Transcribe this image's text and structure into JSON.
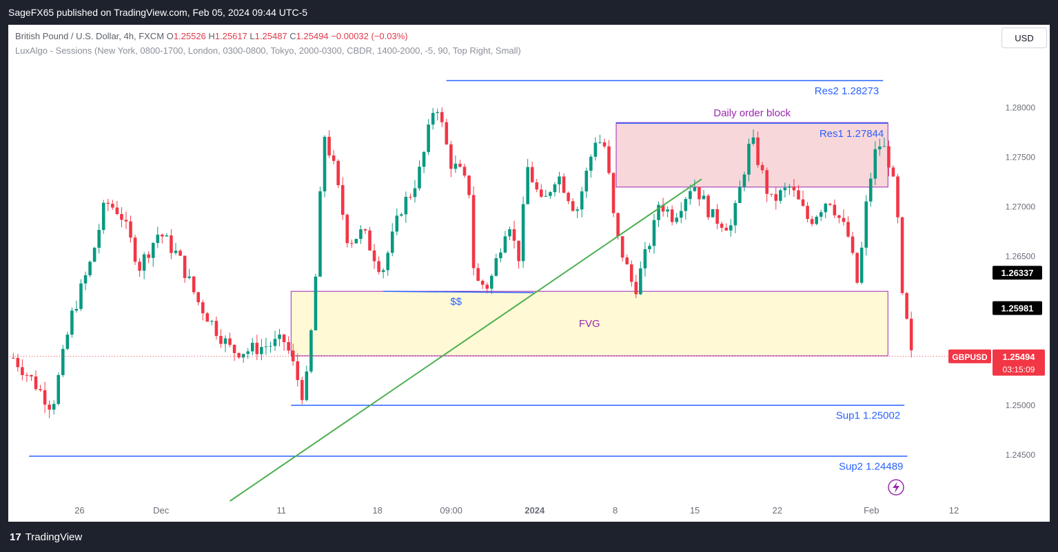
{
  "header": {
    "publish_line": "SageFX65 published on TradingView.com, Feb 05, 2024 09:44 UTC-5"
  },
  "legend": {
    "symbol": "British Pound / U.S. Dollar, 4h, FXCM",
    "o_label": "O",
    "o": "1.25526",
    "h_label": "H",
    "h": "1.25617",
    "l_label": "L",
    "l": "1.25487",
    "c_label": "C",
    "c": "1.25494",
    "change": "−0.00032 (−0.03%)",
    "indicator": "LuxAlgo - Sessions (New York, 0800-1700, London, 0300-0800, Tokyo, 2000-0300, CBDR, 1400-2000, -5, 90, Top Right, Small)"
  },
  "currency_button": "USD",
  "footer": {
    "logo": "17",
    "brand": "TradingView"
  },
  "colors": {
    "up": "#089981",
    "down": "#f23645",
    "level": "#2962ff",
    "trend": "#4caf50",
    "ob_fill": "#f8d7da",
    "fvg_fill": "#fff9d6",
    "zone_border": "#9c27b0"
  },
  "chart_data": {
    "type": "candlestick",
    "symbol": "GBPUSD",
    "timeframe": "4h",
    "ylim": [
      1.2405,
      1.2835
    ],
    "y_ticks": [
      "1.28000",
      "1.27500",
      "1.27000",
      "1.26500",
      "1.26000",
      "1.25500",
      "1.25000",
      "1.24500"
    ],
    "x_ticks": [
      "26",
      "Dec",
      "11",
      "18",
      "09:00",
      "2024",
      "8",
      "15",
      "22",
      "Feb",
      "12"
    ],
    "x_tick_positions": [
      0.072,
      0.156,
      0.28,
      0.379,
      0.455,
      0.541,
      0.624,
      0.706,
      0.791,
      0.888,
      0.973
    ],
    "path_x": [
      0.0,
      0.02,
      0.04,
      0.06,
      0.08,
      0.095,
      0.11,
      0.13,
      0.15,
      0.17,
      0.19,
      0.21,
      0.225,
      0.24,
      0.26,
      0.28,
      0.3,
      0.31,
      0.32,
      0.33,
      0.345,
      0.36,
      0.38,
      0.4,
      0.41,
      0.42,
      0.435,
      0.45,
      0.46,
      0.47,
      0.475,
      0.49,
      0.51,
      0.52,
      0.53,
      0.545,
      0.56,
      0.58,
      0.6,
      0.61,
      0.62,
      0.64,
      0.66,
      0.665,
      0.68,
      0.7,
      0.72,
      0.74,
      0.76,
      0.78,
      0.8,
      0.82,
      0.84,
      0.86,
      0.87,
      0.88,
      0.89,
      0.9,
      0.91,
      0.915,
      0.92,
      0.925
    ],
    "path_y": [
      1.2548,
      1.2525,
      1.2498,
      1.259,
      1.2645,
      1.2705,
      1.2695,
      1.264,
      1.2675,
      1.265,
      1.2605,
      1.2575,
      1.2555,
      1.2555,
      1.256,
      1.2565,
      1.2505,
      1.2605,
      1.2775,
      1.274,
      1.2665,
      1.2675,
      1.2635,
      1.27,
      1.2715,
      1.274,
      1.281,
      1.2745,
      1.2735,
      1.2715,
      1.2625,
      1.262,
      1.269,
      1.2645,
      1.274,
      1.27,
      1.2735,
      1.2695,
      1.277,
      1.276,
      1.2675,
      1.2615,
      1.268,
      1.2705,
      1.269,
      1.2725,
      1.269,
      1.268,
      1.277,
      1.2705,
      1.272,
      1.2685,
      1.271,
      1.267,
      1.262,
      1.2715,
      1.2765,
      1.2755,
      1.2705,
      1.261,
      1.2585,
      1.255
    ],
    "levels": [
      {
        "name": "Res2",
        "value": 1.28273,
        "label": "Res2 1.28273"
      },
      {
        "name": "Res1",
        "value": 1.27844,
        "label": "Res1 1.27844"
      },
      {
        "name": "Sup1",
        "value": 1.25002,
        "label": "Sup1 1.25002"
      },
      {
        "name": "Sup2",
        "value": 1.24489,
        "label": "Sup2 1.24489"
      }
    ],
    "zones": [
      {
        "name": "order-block",
        "label": "Daily order block",
        "top": 1.2785,
        "bottom": 1.272
      },
      {
        "name": "fvg",
        "label": "FVG",
        "top": 1.2615,
        "bottom": 1.255
      }
    ],
    "liquidity_label": "$$",
    "price_labels": [
      {
        "value": 1.26337,
        "text": "1.26337"
      },
      {
        "value": 1.25981,
        "text": "1.25981"
      }
    ],
    "last_price": {
      "value": 1.25494,
      "symbol_tag": "GBPUSD",
      "text": "1.25494",
      "countdown": "03:15:09"
    }
  }
}
